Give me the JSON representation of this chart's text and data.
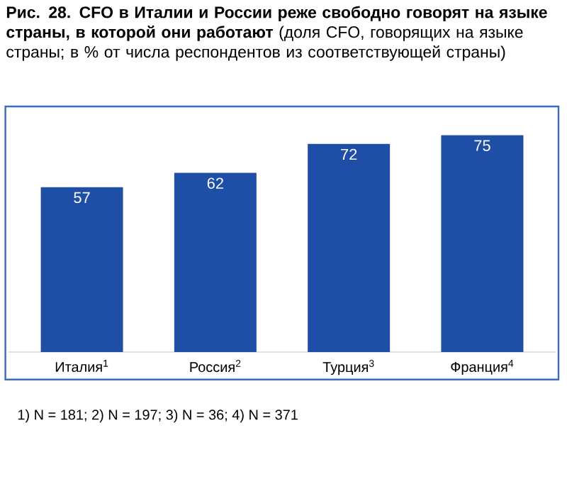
{
  "chart_data": {
    "type": "bar",
    "title": "**Рис. 28. CFO в Италии и России реже свободно говорят на языке страны, в которой они работают** (доля CFO, говорящих на языке страны; в % от числа респондентов из соответствующей страны)",
    "categories": [
      "Италия$^{1}$",
      "Россия$^{2}$",
      "Турция$^{3}$",
      "Франция$^{4}$"
    ],
    "values": [
      57,
      62,
      72,
      75
    ],
    "color": "#1f4ea6",
    "data_labels": true,
    "annotations": [
      "1) N = 181; 2) N = 197; 3) N = 36; 4) N = 371"
    ]
  }
}
